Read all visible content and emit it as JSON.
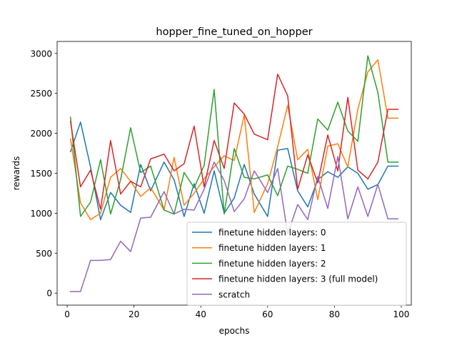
{
  "chart_data": {
    "type": "line",
    "title": "hopper_fine_tuned_on_hopper",
    "xlabel": "epochs",
    "ylabel": "rewards",
    "xlim": [
      -3,
      103
    ],
    "ylim": [
      -150,
      3150
    ],
    "xticks": [
      0,
      20,
      40,
      60,
      80,
      100
    ],
    "yticks": [
      0,
      500,
      1000,
      1500,
      2000,
      2500,
      3000
    ],
    "grid": false,
    "legend_position": "lower-right",
    "x": [
      1,
      4,
      7,
      10,
      13,
      16,
      19,
      22,
      25,
      29,
      32,
      35,
      38,
      41,
      44,
      47,
      50,
      53,
      56,
      60,
      63,
      66,
      69,
      72,
      75,
      78,
      81,
      84,
      87,
      90,
      93,
      96,
      99
    ],
    "series": [
      {
        "name": "finetune hidden layers: 0",
        "color": "#1f77b4",
        "values": [
          1770,
          2140,
          1580,
          920,
          1260,
          1100,
          1010,
          1610,
          1280,
          1640,
          1420,
          960,
          1370,
          1000,
          1530,
          1000,
          1190,
          1610,
          1240,
          960,
          1790,
          1810,
          1280,
          1080,
          1420,
          1520,
          1450,
          1580,
          1500,
          1300,
          1360,
          1590,
          1590
        ]
      },
      {
        "name": "finetune hidden layers: 1",
        "color": "#ff7f0e",
        "values": [
          1930,
          1130,
          920,
          1000,
          1450,
          1560,
          1400,
          1210,
          1320,
          1040,
          1700,
          1100,
          1250,
          1430,
          1580,
          1720,
          1660,
          2230,
          1010,
          1370,
          1830,
          2350,
          1670,
          1800,
          1170,
          1840,
          1870,
          1580,
          2300,
          2770,
          2920,
          2190,
          2190
        ]
      },
      {
        "name": "finetune hidden layers: 2",
        "color": "#2ca02c",
        "values": [
          2200,
          960,
          1140,
          1670,
          990,
          1420,
          2070,
          1510,
          1590,
          1040,
          990,
          1510,
          1320,
          1600,
          2550,
          990,
          1810,
          1450,
          1430,
          1480,
          1220,
          1590,
          1550,
          1500,
          2180,
          2040,
          2390,
          2030,
          1900,
          2970,
          2510,
          1640,
          1640
        ]
      },
      {
        "name": "finetune hidden layers: 3 (full model)",
        "color": "#d62728",
        "values": [
          2150,
          1330,
          1540,
          1050,
          1910,
          1240,
          1400,
          1330,
          1680,
          1740,
          1530,
          1620,
          2090,
          1330,
          1910,
          1560,
          2380,
          2240,
          1990,
          1920,
          2740,
          2470,
          1300,
          1730,
          1380,
          1980,
          1530,
          2450,
          1540,
          1430,
          1640,
          2300,
          2300
        ]
      },
      {
        "name": "scratch",
        "color": "#9467bd",
        "values": [
          20,
          20,
          410,
          410,
          420,
          650,
          520,
          940,
          950,
          1270,
          990,
          1050,
          1040,
          1300,
          1640,
          1410,
          1020,
          1180,
          1530,
          1260,
          1560,
          740,
          1110,
          920,
          1460,
          1060,
          1710,
          930,
          1330,
          960,
          1360,
          930,
          930
        ]
      }
    ]
  }
}
